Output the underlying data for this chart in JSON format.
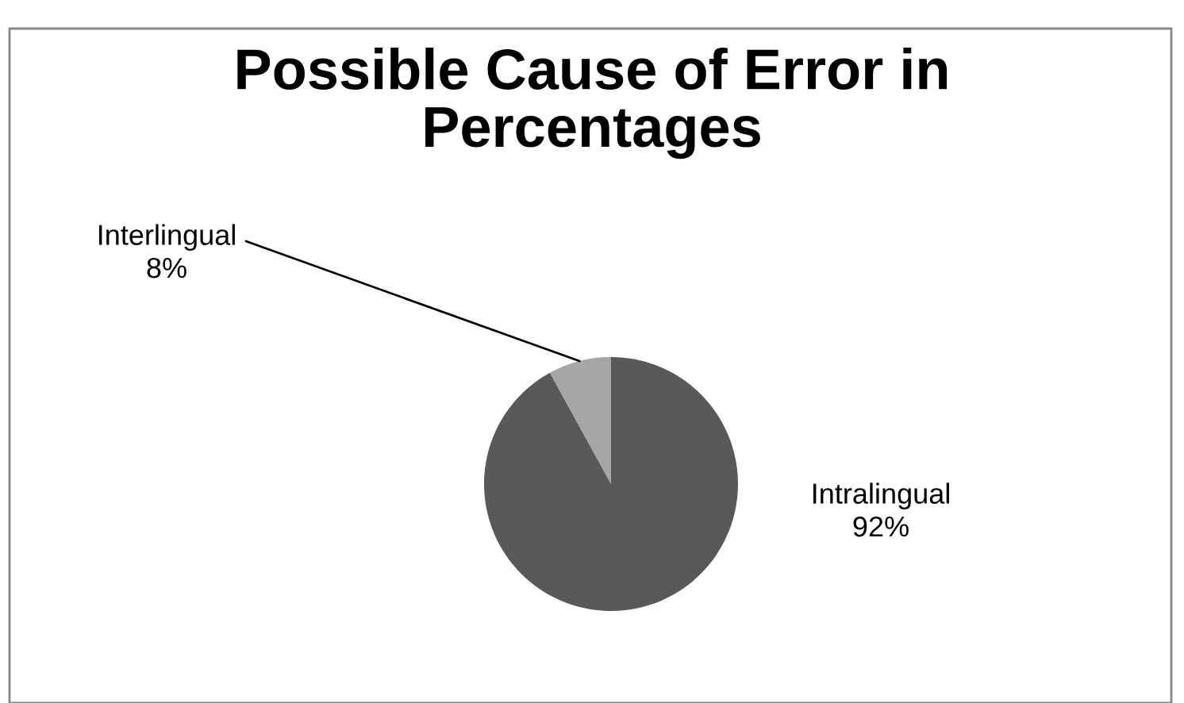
{
  "chart_data": {
    "type": "pie",
    "title": "Possible Cause of Error in Percentages",
    "categories": [
      "Intralingual",
      "Interlingual"
    ],
    "values": [
      92,
      8
    ],
    "colors": [
      "#595959",
      "#a6a6a6"
    ],
    "value_labels": [
      "92%",
      "8%"
    ],
    "legend": false
  }
}
